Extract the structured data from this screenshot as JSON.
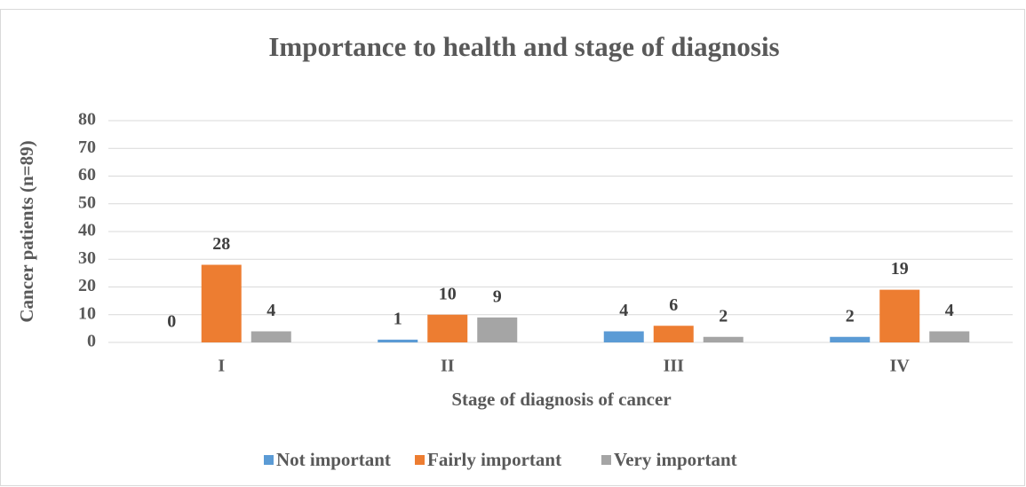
{
  "chart_data": {
    "type": "bar",
    "title": "Importance to health and stage of diagnosis",
    "x_label": "Stage of diagnosis of cancer",
    "y_label": "Cancer patients (n=89)",
    "categories": [
      "I",
      "II",
      "III",
      "IV"
    ],
    "series": [
      {
        "name": "Not important",
        "color": "#5b9bd5",
        "values": [
          0,
          1,
          4,
          2
        ]
      },
      {
        "name": "Fairly important",
        "color": "#ed7d31",
        "values": [
          28,
          10,
          6,
          19
        ]
      },
      {
        "name": "Very important",
        "color": "#a5a5a5",
        "values": [
          4,
          9,
          2,
          4
        ]
      }
    ],
    "ylim": [
      0,
      80
    ],
    "yticks": [
      0,
      10,
      20,
      30,
      40,
      50,
      60,
      70,
      80
    ],
    "grid": true,
    "legend": "bottom"
  }
}
